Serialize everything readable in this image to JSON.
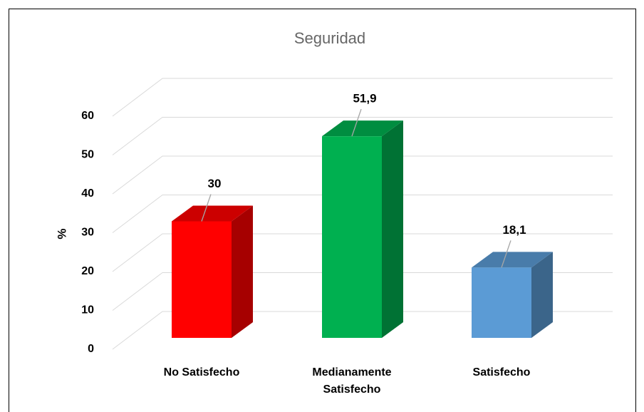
{
  "chart_data": {
    "type": "bar3d",
    "title": "Seguridad",
    "y_label": "%",
    "categories": [
      "No Satisfecho",
      "Medianamente Satisfecho",
      "Satisfecho"
    ],
    "values": [
      30,
      51.9,
      18.1
    ],
    "value_labels": [
      "30",
      "51,9",
      "18,1"
    ],
    "colors": [
      "#ff0000",
      "#00b050",
      "#5b9bd5"
    ],
    "ylim": [
      0,
      60
    ],
    "yticks": [
      0,
      10,
      20,
      30,
      40,
      50,
      60
    ],
    "grid": true
  }
}
